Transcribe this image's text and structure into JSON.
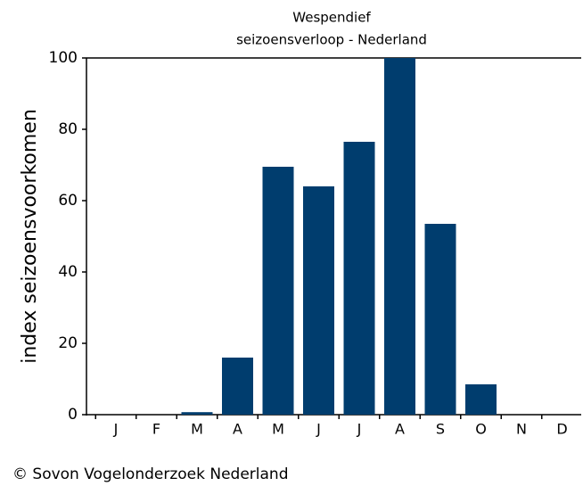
{
  "chart_data": {
    "type": "bar",
    "title": "Wespendief",
    "subtitle": "seizoensverloop - Nederland",
    "y_label": "index seizoensvoorkomen",
    "footer": "© Sovon Vogelonderzoek Nederland",
    "categories": [
      "J",
      "F",
      "M",
      "A",
      "M",
      "J",
      "J",
      "A",
      "S",
      "O",
      "N",
      "D"
    ],
    "values": [
      0,
      0,
      0.7,
      16,
      69.5,
      64,
      76.5,
      100,
      53.5,
      8.5,
      0,
      0
    ],
    "color": "#003d6e",
    "ylim": [
      0,
      100
    ],
    "yticks": [
      0,
      20,
      40,
      60,
      80,
      100
    ],
    "grid": false
  }
}
